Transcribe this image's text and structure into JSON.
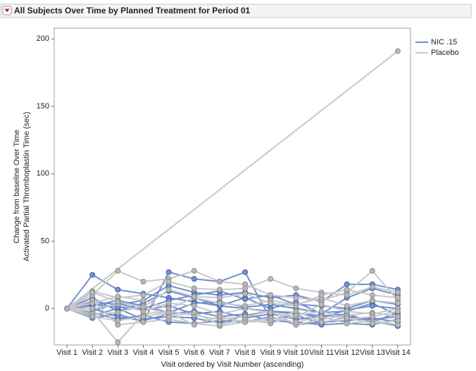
{
  "chart_data": {
    "type": "line",
    "title": "All Subjects Over Time by Planned Treatment for Period 01",
    "ylabel": [
      "Change from baseline Over Time",
      "Activated Partial Thromboplastin Time (sec)"
    ],
    "xlabel": "Visit ordered by Visit Number (ascending)",
    "categories": [
      "Visit 1",
      "Visit 2",
      "Visit 3",
      "Visit 4",
      "Visit 5",
      "Visit 6",
      "Visit 7",
      "Visit 8",
      "Visit 9",
      "Visit 10",
      "Visit 11",
      "Visit 12",
      "Visit 13",
      "Visit 14"
    ],
    "ylim": [
      -27,
      208
    ],
    "yticks": [
      0,
      50,
      100,
      150,
      200
    ],
    "series": [
      {
        "name": "NIC .15",
        "color": "#6f8fcf",
        "marker_color": "#7393d3",
        "subjects": [
          {
            "values": [
              0,
              25,
              14,
              11,
              8,
              5,
              2,
              0,
              -2,
              -4,
              -5,
              -6,
              -8,
              -6
            ]
          },
          {
            "values": [
              0,
              -7,
              -4,
              -10,
              27,
              22,
              20,
              27,
              -8,
              -5,
              -11,
              -6,
              -9,
              -13
            ]
          },
          {
            "values": [
              0,
              5,
              3,
              6,
              17,
              12,
              10,
              12,
              8,
              10,
              5,
              18,
              18,
              14
            ]
          },
          {
            "values": [
              0,
              -3,
              -8,
              -5,
              -10,
              -11,
              -9,
              -10,
              -6,
              -12,
              -10,
              -9,
              -7,
              -10
            ]
          },
          {
            "values": [
              0,
              2,
              6,
              2,
              -3,
              4,
              5,
              1,
              3,
              0,
              -3,
              -2,
              4,
              -5
            ]
          },
          {
            "values": [
              0,
              -5,
              0,
              -8,
              -6,
              -7,
              -11,
              -5,
              -2,
              -3,
              -7,
              -1,
              2,
              0
            ]
          },
          {
            "values": [
              0,
              8,
              -2,
              4,
              13,
              8,
              2,
              8,
              0,
              5,
              -4,
              8,
              15,
              10
            ]
          },
          {
            "values": [
              0,
              -2,
              4,
              -1,
              2,
              -4,
              -2,
              -7,
              -4,
              -8,
              -6,
              -4,
              -10,
              -3
            ]
          },
          {
            "values": [
              0,
              0,
              -6,
              -9,
              -4,
              -2,
              -6,
              -4,
              -9,
              -10,
              -12,
              -11,
              -12,
              -8
            ]
          },
          {
            "values": [
              0,
              3,
              1,
              0,
              6,
              10,
              13,
              7,
              10,
              3,
              2,
              0,
              6,
              3
            ]
          }
        ]
      },
      {
        "name": "Placebo",
        "color": "#c8c8c8",
        "marker_color": "#b8b8b8",
        "subjects": [
          {
            "x": [
              "Visit 1",
              "Visit 14"
            ],
            "values": [
              0,
              191
            ]
          },
          {
            "values": [
              0,
              10,
              28,
              20,
              22,
              28,
              20,
              18,
              10,
              8,
              6,
              12,
              28,
              6
            ]
          },
          {
            "values": [
              0,
              -2,
              -25,
              -4,
              -2,
              -5,
              -8,
              -6,
              -2,
              -12,
              -8,
              -5,
              -3,
              -6
            ]
          },
          {
            "values": [
              0,
              6,
              -12,
              -10,
              -8,
              -11,
              -13,
              -10,
              -7,
              -10,
              -6,
              -11,
              -9,
              -12
            ]
          },
          {
            "values": [
              0,
              13,
              8,
              10,
              20,
              15,
              14,
              15,
              22,
              15,
              12,
              10,
              16,
              12
            ]
          },
          {
            "values": [
              0,
              0,
              3,
              -2,
              4,
              2,
              -4,
              0,
              -3,
              -6,
              3,
              -2,
              -4,
              0
            ]
          },
          {
            "values": [
              0,
              4,
              9,
              6,
              0,
              8,
              4,
              2,
              6,
              3,
              8,
              2,
              6,
              4
            ]
          },
          {
            "values": [
              0,
              -4,
              -3,
              2,
              -6,
              -3,
              -12,
              -8,
              -11,
              -5,
              -2,
              -8,
              -6,
              -2
            ]
          },
          {
            "values": [
              0,
              12,
              5,
              1,
              14,
              9,
              8,
              11,
              4,
              2,
              10,
              14,
              10,
              8
            ]
          },
          {
            "values": [
              0,
              -6,
              -9,
              -6,
              -3,
              -12,
              -6,
              -10,
              -9,
              -2,
              -10,
              -7,
              -11,
              -9
            ]
          }
        ]
      }
    ]
  }
}
